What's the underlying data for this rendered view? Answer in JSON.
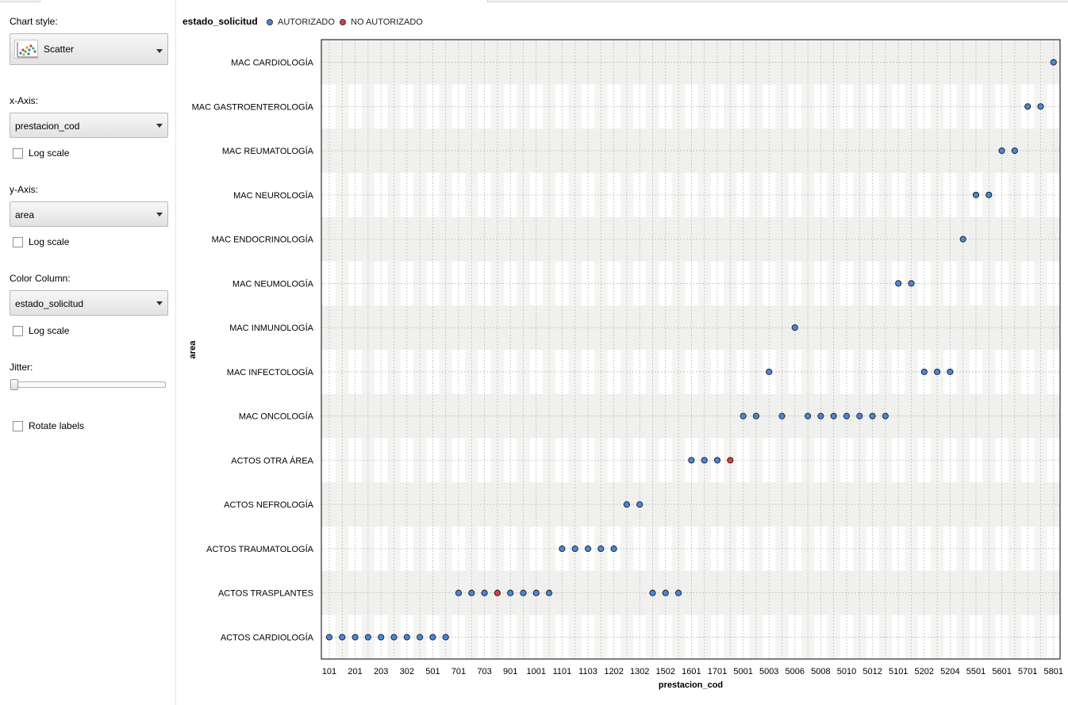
{
  "sidebar": {
    "chart_style_label": "Chart style:",
    "chart_style_value": "Scatter",
    "x_axis_label": "x-Axis:",
    "x_axis_value": "prestacion_cod",
    "y_axis_label": "y-Axis:",
    "y_axis_value": "area",
    "color_column_label": "Color Column:",
    "color_column_value": "estado_solicitud",
    "log_scale_label": "Log scale",
    "jitter_label": "Jitter:",
    "jitter_level": 0,
    "rotate_labels_label": "Rotate labels"
  },
  "colors": {
    "autorizado": "#4a86d8",
    "no_autorizado": "#e03b3b",
    "band_light": "#f0f0ee",
    "grid": "#b8b8b8"
  },
  "chart_data": {
    "type": "scatter",
    "legend_title": "estado_solicitud",
    "legend": [
      "AUTORIZADO",
      "NO AUTORIZADO"
    ],
    "legend_position": "top-left",
    "xlabel": "prestacion_cod",
    "ylabel": "area",
    "grid": true,
    "x_categories": [
      "101",
      "102",
      "201",
      "202",
      "203",
      "301",
      "302",
      "401",
      "501",
      "601",
      "701",
      "702",
      "703",
      "801",
      "901",
      "902",
      "1001",
      "1002",
      "1101",
      "1102",
      "1103",
      "1201",
      "1202",
      "1301",
      "1302",
      "1401",
      "1502",
      "1503",
      "1601",
      "1602",
      "1701",
      "1702",
      "5001",
      "5002",
      "5003",
      "5005",
      "5006",
      "5007",
      "5008",
      "5009",
      "5010",
      "5011",
      "5012",
      "5013",
      "5101",
      "5102",
      "5202",
      "5203",
      "5204",
      "5205",
      "5501",
      "5502",
      "5601",
      "5602",
      "5701",
      "5702",
      "5801"
    ],
    "x_tick_labels_shown": [
      "101",
      "201",
      "203",
      "302",
      "501",
      "701",
      "703",
      "901",
      "1001",
      "1101",
      "1103",
      "1202",
      "1302",
      "1502",
      "1601",
      "1701",
      "5001",
      "5003",
      "5006",
      "5008",
      "5010",
      "5012",
      "5101",
      "5202",
      "5204",
      "5501",
      "5601",
      "5701",
      "5801"
    ],
    "y_categories": [
      "ACTOS CARDIOLOGÍA",
      "ACTOS TRASPLANTES",
      "ACTOS TRAUMATOLOGÍA",
      "ACTOS NEFROLOGÍA",
      "ACTOS OTRA ÁREA",
      "MAC ONCOLOGÍA",
      "MAC INFECTOLOGÍA",
      "MAC INMUNOLOGÍA",
      "MAC NEUMOLOGÍA",
      "MAC ENDOCRINOLOGÍA",
      "MAC NEUROLOGÍA",
      "MAC REUMATOLOGÍA",
      "MAC GASTROENTEROLOGÍA",
      "MAC CARDIOLOGÍA"
    ],
    "series": [
      {
        "name": "AUTORIZADO",
        "points": [
          {
            "x": "101",
            "y": "ACTOS CARDIOLOGÍA"
          },
          {
            "x": "102",
            "y": "ACTOS CARDIOLOGÍA"
          },
          {
            "x": "201",
            "y": "ACTOS CARDIOLOGÍA"
          },
          {
            "x": "202",
            "y": "ACTOS CARDIOLOGÍA"
          },
          {
            "x": "203",
            "y": "ACTOS CARDIOLOGÍA"
          },
          {
            "x": "301",
            "y": "ACTOS CARDIOLOGÍA"
          },
          {
            "x": "302",
            "y": "ACTOS CARDIOLOGÍA"
          },
          {
            "x": "401",
            "y": "ACTOS CARDIOLOGÍA"
          },
          {
            "x": "501",
            "y": "ACTOS CARDIOLOGÍA"
          },
          {
            "x": "601",
            "y": "ACTOS CARDIOLOGÍA"
          },
          {
            "x": "701",
            "y": "ACTOS TRASPLANTES"
          },
          {
            "x": "702",
            "y": "ACTOS TRASPLANTES"
          },
          {
            "x": "703",
            "y": "ACTOS TRASPLANTES"
          },
          {
            "x": "901",
            "y": "ACTOS TRASPLANTES"
          },
          {
            "x": "902",
            "y": "ACTOS TRASPLANTES"
          },
          {
            "x": "1001",
            "y": "ACTOS TRASPLANTES"
          },
          {
            "x": "1002",
            "y": "ACTOS TRASPLANTES"
          },
          {
            "x": "1401",
            "y": "ACTOS TRASPLANTES"
          },
          {
            "x": "1502",
            "y": "ACTOS TRASPLANTES"
          },
          {
            "x": "1503",
            "y": "ACTOS TRASPLANTES"
          },
          {
            "x": "1101",
            "y": "ACTOS TRAUMATOLOGÍA"
          },
          {
            "x": "1102",
            "y": "ACTOS TRAUMATOLOGÍA"
          },
          {
            "x": "1103",
            "y": "ACTOS TRAUMATOLOGÍA"
          },
          {
            "x": "1201",
            "y": "ACTOS TRAUMATOLOGÍA"
          },
          {
            "x": "1202",
            "y": "ACTOS TRAUMATOLOGÍA"
          },
          {
            "x": "1301",
            "y": "ACTOS NEFROLOGÍA"
          },
          {
            "x": "1302",
            "y": "ACTOS NEFROLOGÍA"
          },
          {
            "x": "1601",
            "y": "ACTOS OTRA ÁREA"
          },
          {
            "x": "1602",
            "y": "ACTOS OTRA ÁREA"
          },
          {
            "x": "1701",
            "y": "ACTOS OTRA ÁREA"
          },
          {
            "x": "5001",
            "y": "MAC ONCOLOGÍA"
          },
          {
            "x": "5002",
            "y": "MAC ONCOLOGÍA"
          },
          {
            "x": "5005",
            "y": "MAC ONCOLOGÍA"
          },
          {
            "x": "5007",
            "y": "MAC ONCOLOGÍA"
          },
          {
            "x": "5008",
            "y": "MAC ONCOLOGÍA"
          },
          {
            "x": "5009",
            "y": "MAC ONCOLOGÍA"
          },
          {
            "x": "5010",
            "y": "MAC ONCOLOGÍA"
          },
          {
            "x": "5011",
            "y": "MAC ONCOLOGÍA"
          },
          {
            "x": "5012",
            "y": "MAC ONCOLOGÍA"
          },
          {
            "x": "5013",
            "y": "MAC ONCOLOGÍA"
          },
          {
            "x": "5003",
            "y": "MAC INFECTOLOGÍA"
          },
          {
            "x": "5202",
            "y": "MAC INFECTOLOGÍA"
          },
          {
            "x": "5203",
            "y": "MAC INFECTOLOGÍA"
          },
          {
            "x": "5204",
            "y": "MAC INFECTOLOGÍA"
          },
          {
            "x": "5006",
            "y": "MAC INMUNOLOGÍA"
          },
          {
            "x": "5101",
            "y": "MAC NEUMOLOGÍA"
          },
          {
            "x": "5102",
            "y": "MAC NEUMOLOGÍA"
          },
          {
            "x": "5205",
            "y": "MAC ENDOCRINOLOGÍA"
          },
          {
            "x": "5501",
            "y": "MAC NEUROLOGÍA"
          },
          {
            "x": "5502",
            "y": "MAC NEUROLOGÍA"
          },
          {
            "x": "5601",
            "y": "MAC REUMATOLOGÍA"
          },
          {
            "x": "5602",
            "y": "MAC REUMATOLOGÍA"
          },
          {
            "x": "5701",
            "y": "MAC GASTROENTEROLOGÍA"
          },
          {
            "x": "5702",
            "y": "MAC GASTROENTEROLOGÍA"
          },
          {
            "x": "5801",
            "y": "MAC CARDIOLOGÍA"
          }
        ]
      },
      {
        "name": "NO AUTORIZADO",
        "points": [
          {
            "x": "801",
            "y": "ACTOS TRASPLANTES"
          },
          {
            "x": "1702",
            "y": "ACTOS OTRA ÁREA"
          }
        ]
      }
    ]
  }
}
